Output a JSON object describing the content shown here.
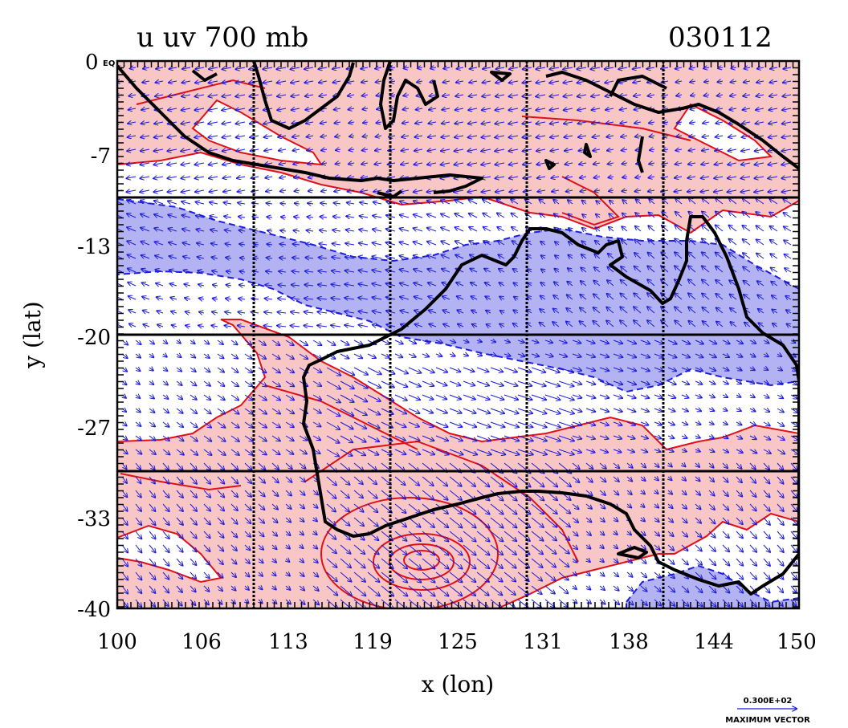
{
  "title_left": "u uv 700 mb",
  "title_right": "030112",
  "origin_label": "0",
  "origin_tag": "EQ",
  "x_ticks": [
    "100",
    "106",
    "113",
    "119",
    "125",
    "131",
    "138",
    "144",
    "150"
  ],
  "y_ticks": [
    "-7",
    "-13",
    "-20",
    "-27",
    "-33",
    "-40"
  ],
  "x_label": "x (lon)",
  "y_label": "y (lat)",
  "vector_scale": "0.300E+02",
  "vector_caption": "MAXIMUM VECTOR",
  "colors": {
    "positive_fill": "#f9c6c6",
    "positive_contour": "#e0101a",
    "negative_fill": "#b3b3f3",
    "negative_contour": "#1d1de0",
    "vector": "#1a1ad8",
    "coast": "#000000"
  },
  "map": {
    "lon_range": [
      100,
      150
    ],
    "lat_range": [
      -40,
      0
    ],
    "grid_lon": [
      110,
      120,
      130,
      140
    ],
    "grid_lat": [
      -10,
      -20,
      -30
    ]
  }
}
